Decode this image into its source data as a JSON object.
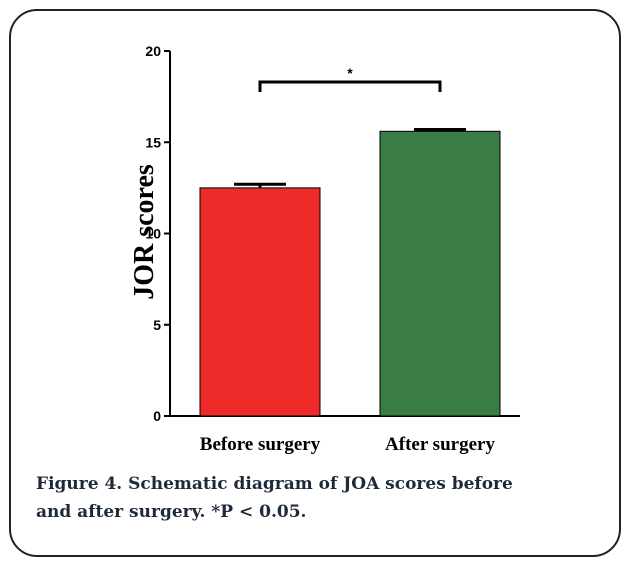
{
  "chart_data": {
    "type": "bar",
    "categories": [
      "Before surgery",
      "After surgery"
    ],
    "values": [
      12.5,
      15.6
    ],
    "error_upper": [
      12.7,
      15.7
    ],
    "colors": [
      "#ee2a2a",
      "#3a7d44"
    ],
    "ylabel": "JOR scores",
    "xlabel": "",
    "ylim": [
      0,
      20
    ],
    "yticks": [
      "0",
      "5",
      "10",
      "15",
      "20"
    ],
    "grid": false,
    "significance": {
      "between": [
        "Before surgery",
        "After surgery"
      ],
      "label": "*"
    }
  },
  "caption": {
    "line1": "Figure 4. Schematic diagram of JOA scores before",
    "line2": "and after surgery. *P < 0.05."
  }
}
